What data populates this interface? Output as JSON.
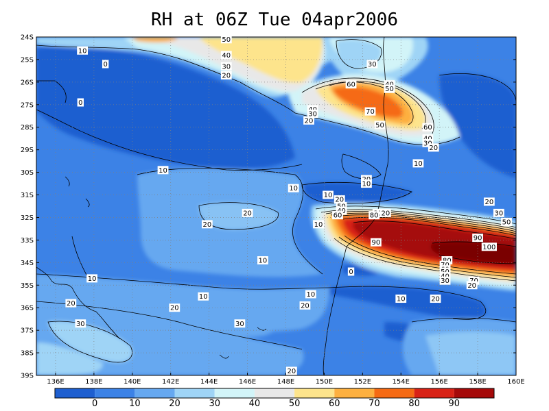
{
  "title": "RH at 06Z Tue 04apr2006",
  "map": {
    "lat_labels": [
      "24S",
      "25S",
      "26S",
      "27S",
      "28S",
      "29S",
      "30S",
      "31S",
      "32S",
      "33S",
      "34S",
      "35S",
      "36S",
      "37S",
      "38S",
      "39S"
    ],
    "lon_labels": [
      "136E",
      "138E",
      "140E",
      "142E",
      "144E",
      "146E",
      "148E",
      "150E",
      "152E",
      "154E",
      "156E",
      "158E",
      "160E"
    ],
    "contour_labels": [
      {
        "text": "50",
        "lon": 144.9,
        "lat": -24.1
      },
      {
        "text": "10",
        "lon": 137.4,
        "lat": -24.6
      },
      {
        "text": "40",
        "lon": 144.9,
        "lat": -24.8
      },
      {
        "text": "0",
        "lon": 138.6,
        "lat": -25.2
      },
      {
        "text": "30",
        "lon": 144.9,
        "lat": -25.3
      },
      {
        "text": "20",
        "lon": 144.9,
        "lat": -25.7
      },
      {
        "text": "30",
        "lon": 152.5,
        "lat": -25.2
      },
      {
        "text": "40",
        "lon": 153.4,
        "lat": -26.1
      },
      {
        "text": "50",
        "lon": 153.4,
        "lat": -26.3
      },
      {
        "text": "60",
        "lon": 151.4,
        "lat": -26.1
      },
      {
        "text": "0",
        "lon": 137.3,
        "lat": -26.9
      },
      {
        "text": "70",
        "lon": 152.4,
        "lat": -27.3
      },
      {
        "text": "40",
        "lon": 149.4,
        "lat": -27.2
      },
      {
        "text": "30",
        "lon": 149.4,
        "lat": -27.4
      },
      {
        "text": "20",
        "lon": 149.2,
        "lat": -27.7
      },
      {
        "text": "50",
        "lon": 152.9,
        "lat": -27.9
      },
      {
        "text": "60",
        "lon": 155.4,
        "lat": -28.0
      },
      {
        "text": "40",
        "lon": 155.4,
        "lat": -28.5
      },
      {
        "text": "30",
        "lon": 155.4,
        "lat": -28.7
      },
      {
        "text": "20",
        "lon": 155.7,
        "lat": -28.9
      },
      {
        "text": "10",
        "lon": 154.9,
        "lat": -29.6
      },
      {
        "text": "10",
        "lon": 141.6,
        "lat": -29.9
      },
      {
        "text": "20",
        "lon": 152.2,
        "lat": -30.3
      },
      {
        "text": "10",
        "lon": 152.2,
        "lat": -30.5
      },
      {
        "text": "10",
        "lon": 148.4,
        "lat": -30.7
      },
      {
        "text": "10",
        "lon": 150.2,
        "lat": -31.0
      },
      {
        "text": "20",
        "lon": 150.8,
        "lat": -31.2
      },
      {
        "text": "20",
        "lon": 158.6,
        "lat": -31.3
      },
      {
        "text": "50",
        "lon": 150.9,
        "lat": -31.5
      },
      {
        "text": "40",
        "lon": 150.9,
        "lat": -31.7
      },
      {
        "text": "30",
        "lon": 152.8,
        "lat": -31.8
      },
      {
        "text": "20",
        "lon": 153.2,
        "lat": -31.8
      },
      {
        "text": "60",
        "lon": 150.7,
        "lat": -31.9
      },
      {
        "text": "80",
        "lon": 152.6,
        "lat": -31.9
      },
      {
        "text": "20",
        "lon": 146.0,
        "lat": -31.8
      },
      {
        "text": "30",
        "lon": 159.1,
        "lat": -31.8
      },
      {
        "text": "50",
        "lon": 159.5,
        "lat": -32.2
      },
      {
        "text": "20",
        "lon": 143.9,
        "lat": -32.3
      },
      {
        "text": "10",
        "lon": 149.7,
        "lat": -32.3
      },
      {
        "text": "90",
        "lon": 152.7,
        "lat": -33.1
      },
      {
        "text": "90",
        "lon": 158.0,
        "lat": -32.9
      },
      {
        "text": "100",
        "lon": 158.6,
        "lat": -33.3
      },
      {
        "text": "10",
        "lon": 146.8,
        "lat": -33.9
      },
      {
        "text": "80",
        "lon": 156.4,
        "lat": -33.9
      },
      {
        "text": "0",
        "lon": 151.4,
        "lat": -34.4
      },
      {
        "text": "70",
        "lon": 156.3,
        "lat": -34.1
      },
      {
        "text": "60",
        "lon": 156.3,
        "lat": -34.3
      },
      {
        "text": "50",
        "lon": 156.3,
        "lat": -34.4
      },
      {
        "text": "40",
        "lon": 156.3,
        "lat": -34.6
      },
      {
        "text": "30",
        "lon": 156.3,
        "lat": -34.8
      },
      {
        "text": "70",
        "lon": 157.8,
        "lat": -34.8
      },
      {
        "text": "10",
        "lon": 137.9,
        "lat": -34.7
      },
      {
        "text": "20",
        "lon": 157.7,
        "lat": -35.0
      },
      {
        "text": "10",
        "lon": 143.7,
        "lat": -35.5
      },
      {
        "text": "10",
        "lon": 149.3,
        "lat": -35.4
      },
      {
        "text": "10",
        "lon": 154.0,
        "lat": -35.6
      },
      {
        "text": "20",
        "lon": 155.8,
        "lat": -35.6
      },
      {
        "text": "20",
        "lon": 136.8,
        "lat": -35.8
      },
      {
        "text": "20",
        "lon": 149.0,
        "lat": -35.9
      },
      {
        "text": "20",
        "lon": 142.2,
        "lat": -36.0
      },
      {
        "text": "30",
        "lon": 145.6,
        "lat": -36.7
      },
      {
        "text": "30",
        "lon": 137.3,
        "lat": -36.7
      },
      {
        "text": "20",
        "lon": 148.3,
        "lat": -38.8
      }
    ]
  },
  "colorbar": {
    "labels": [
      "0",
      "10",
      "20",
      "30",
      "40",
      "50",
      "60",
      "70",
      "80",
      "90"
    ],
    "colors": [
      "#1e5fd0",
      "#3c82e6",
      "#66a8f0",
      "#9fd4f6",
      "#d2f4f8",
      "#e8e8e8",
      "#fde48c",
      "#fdb040",
      "#f56a14",
      "#d82216",
      "#a50a0a"
    ]
  },
  "chart_data": {
    "type": "heatmap",
    "title": "RH at 06Z Tue 04apr2006",
    "xlabel": "",
    "ylabel": "",
    "x": [
      136,
      138,
      140,
      142,
      144,
      146,
      148,
      150,
      152,
      154,
      156,
      158,
      160
    ],
    "y": [
      -24,
      -26,
      -28,
      -30,
      -32,
      -34,
      -36,
      -38
    ],
    "xlim": [
      135,
      160
    ],
    "ylim": [
      -39,
      -24
    ],
    "contour_levels": [
      0,
      10,
      20,
      30,
      40,
      50,
      60,
      70,
      80,
      90,
      100
    ],
    "values": [
      [
        5,
        5,
        10,
        20,
        50,
        55,
        55,
        30,
        50,
        30,
        20,
        15,
        15
      ],
      [
        5,
        0,
        5,
        10,
        20,
        30,
        50,
        60,
        60,
        50,
        30,
        15,
        10
      ],
      [
        8,
        0,
        5,
        10,
        12,
        15,
        18,
        25,
        55,
        55,
        30,
        15,
        5
      ],
      [
        10,
        10,
        15,
        15,
        15,
        15,
        10,
        10,
        20,
        10,
        10,
        10,
        5
      ],
      [
        10,
        10,
        15,
        15,
        20,
        20,
        15,
        10,
        60,
        80,
        60,
        40,
        30
      ],
      [
        5,
        8,
        10,
        15,
        15,
        15,
        10,
        10,
        20,
        60,
        90,
        100,
        90
      ],
      [
        15,
        20,
        20,
        20,
        15,
        15,
        15,
        10,
        10,
        10,
        15,
        15,
        10
      ],
      [
        25,
        25,
        20,
        20,
        25,
        20,
        20,
        15,
        12,
        10,
        10,
        15,
        15
      ]
    ]
  }
}
